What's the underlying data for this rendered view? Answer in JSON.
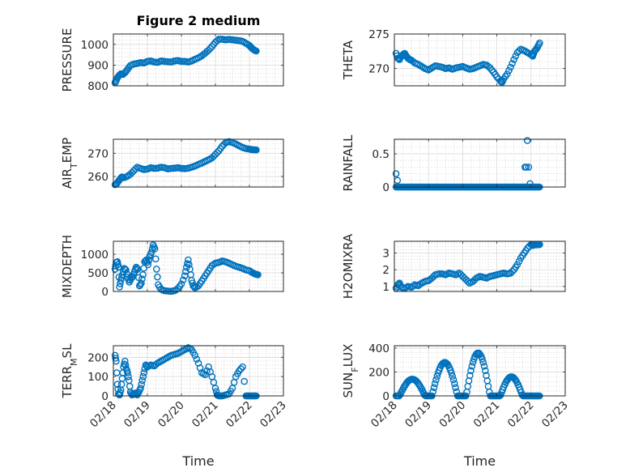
{
  "chart_data": [
    {
      "panel": "pressure",
      "type": "scatter",
      "title": "Figure 2 medium",
      "ylabel": "PRESSURE",
      "xlabel": "",
      "xlim": [
        "02/18",
        "02/23"
      ],
      "ylim": [
        800,
        1050
      ],
      "yticks": [
        800,
        900,
        1000
      ],
      "yticklabels": [
        "800",
        "900",
        "1000"
      ],
      "xticklabels": [],
      "grid": true,
      "minor_grid": true,
      "series": [
        {
          "x": [
            0.05,
            0.08,
            0.12,
            0.17,
            0.22,
            0.28,
            0.35,
            0.42,
            0.5,
            0.6,
            0.7,
            0.8,
            0.9,
            1.0,
            1.1,
            1.2,
            1.3,
            1.4,
            1.5,
            1.6,
            1.7,
            1.8,
            1.9,
            2.0,
            2.1,
            2.2,
            2.3,
            2.4,
            2.5,
            2.6,
            2.7,
            2.8,
            2.9,
            3.0,
            3.1,
            3.2,
            3.3,
            3.4,
            3.5,
            3.6,
            3.7,
            3.8,
            3.9,
            4.0,
            4.05,
            4.1,
            4.15,
            4.2
          ],
          "values": [
            815,
            825,
            840,
            850,
            858,
            855,
            865,
            880,
            898,
            905,
            908,
            912,
            910,
            918,
            920,
            915,
            913,
            920,
            918,
            916,
            915,
            920,
            922,
            918,
            918,
            915,
            920,
            928,
            935,
            945,
            958,
            972,
            990,
            1010,
            1025,
            1025,
            1022,
            1024,
            1022,
            1020,
            1018,
            1015,
            1005,
            995,
            985,
            978,
            972,
            968
          ]
        }
      ]
    },
    {
      "panel": "theta",
      "type": "scatter",
      "title": "",
      "ylabel": "THETA",
      "xlabel": "",
      "xlim": [
        "02/18",
        "02/23"
      ],
      "ylim": [
        267.5,
        275
      ],
      "yticks": [
        270,
        275
      ],
      "yticklabels": [
        "270",
        "275"
      ],
      "xticklabels": [],
      "grid": true,
      "minor_grid": true,
      "series": [
        {
          "x": [
            0.05,
            0.1,
            0.15,
            0.2,
            0.25,
            0.3,
            0.35,
            0.4,
            0.45,
            0.5,
            0.6,
            0.7,
            0.8,
            0.9,
            1.0,
            1.1,
            1.2,
            1.3,
            1.4,
            1.5,
            1.6,
            1.7,
            1.8,
            1.9,
            2.0,
            2.1,
            2.2,
            2.3,
            2.4,
            2.5,
            2.6,
            2.7,
            2.8,
            2.9,
            3.0,
            3.1,
            3.15,
            3.2,
            3.3,
            3.4,
            3.5,
            3.6,
            3.7,
            3.8,
            3.9,
            4.0,
            4.05,
            4.1,
            4.15,
            4.2,
            4.25
          ],
          "values": [
            272.2,
            271.5,
            271.3,
            271.8,
            272.0,
            272.2,
            271.8,
            271.5,
            271.3,
            271.2,
            270.8,
            270.6,
            270.3,
            270.0,
            269.8,
            270.1,
            270.4,
            270.3,
            270.2,
            270.0,
            270.1,
            269.9,
            270.1,
            270.2,
            270.3,
            270.1,
            269.9,
            270.0,
            270.2,
            270.4,
            270.6,
            270.5,
            270.1,
            269.5,
            268.8,
            268.2,
            268.0,
            268.5,
            269.2,
            270.2,
            271.3,
            272.3,
            272.8,
            272.6,
            272.3,
            272.0,
            271.8,
            272.5,
            272.8,
            273.2,
            273.7
          ]
        }
      ]
    },
    {
      "panel": "air_temp",
      "type": "scatter",
      "title": "",
      "ylabel_main": "AIR",
      "ylabel_sub": "T",
      "ylabel_rest": "EMP",
      "xlabel": "",
      "xlim": [
        "02/18",
        "02/23"
      ],
      "ylim": [
        255.5,
        276
      ],
      "yticks": [
        260,
        270
      ],
      "yticklabels": [
        "260",
        "270"
      ],
      "xticklabels": [],
      "grid": true,
      "minor_grid": true,
      "series": [
        {
          "x": [
            0.05,
            0.1,
            0.15,
            0.2,
            0.25,
            0.3,
            0.4,
            0.5,
            0.6,
            0.7,
            0.8,
            0.9,
            1.0,
            1.1,
            1.2,
            1.3,
            1.4,
            1.5,
            1.6,
            1.7,
            1.8,
            1.9,
            2.0,
            2.1,
            2.2,
            2.3,
            2.4,
            2.5,
            2.6,
            2.7,
            2.8,
            2.9,
            3.0,
            3.1,
            3.2,
            3.3,
            3.4,
            3.5,
            3.6,
            3.7,
            3.8,
            3.9,
            4.0,
            4.05,
            4.1,
            4.15,
            4.2
          ],
          "values": [
            256.5,
            257.0,
            258.0,
            259.0,
            259.8,
            259.5,
            260.0,
            261.0,
            262.5,
            264.0,
            263.5,
            263.0,
            263.2,
            263.8,
            263.5,
            263.6,
            264.0,
            263.8,
            263.3,
            263.5,
            263.6,
            263.8,
            263.5,
            263.4,
            263.6,
            264.0,
            264.5,
            265.2,
            265.8,
            266.5,
            267.2,
            268.0,
            269.5,
            271.0,
            273.0,
            274.5,
            275.0,
            274.6,
            274.0,
            273.2,
            272.5,
            272.0,
            271.8,
            271.6,
            271.5,
            271.5,
            271.4
          ]
        }
      ]
    },
    {
      "panel": "rainfall",
      "type": "scatter",
      "title": "",
      "ylabel": "RAINFALL",
      "xlabel": "",
      "xlim": [
        "02/18",
        "02/23"
      ],
      "ylim": [
        0,
        0.72
      ],
      "yticks": [
        0,
        0.5
      ],
      "yticklabels": [
        "0",
        "0.5"
      ],
      "xticklabels": [],
      "grid": true,
      "minor_grid": true,
      "series": [
        {
          "x_range_zero": [
            0.05,
            4.25
          ],
          "x_step": 0.025,
          "spikes_x": [
            0.05,
            0.09,
            3.82,
            3.86,
            3.89,
            3.93,
            3.97
          ],
          "spikes_y": [
            0.2,
            0.1,
            0.3,
            0.3,
            0.7,
            0.3,
            0.05
          ]
        }
      ]
    },
    {
      "panel": "mixdepth",
      "type": "scatter",
      "title": "",
      "ylabel": "MIXDEPTH",
      "xlabel": "",
      "xlim": [
        "02/18",
        "02/23"
      ],
      "ylim": [
        0,
        1350
      ],
      "yticks": [
        0,
        500,
        1000
      ],
      "yticklabels": [
        "0",
        "500",
        "1000"
      ],
      "xticklabels": [],
      "grid": true,
      "minor_grid": true,
      "series": [
        {
          "x": [
            0.05,
            0.08,
            0.12,
            0.15,
            0.18,
            0.22,
            0.27,
            0.32,
            0.37,
            0.42,
            0.47,
            0.52,
            0.57,
            0.62,
            0.67,
            0.72,
            0.77,
            0.82,
            0.87,
            0.92,
            0.97,
            1.02,
            1.07,
            1.12,
            1.17,
            1.22,
            1.27,
            1.32,
            1.4,
            1.5,
            1.6,
            1.7,
            1.8,
            1.9,
            2.0,
            2.1,
            2.15,
            2.2,
            2.25,
            2.3,
            2.35,
            2.4,
            2.5,
            2.6,
            2.7,
            2.8,
            2.9,
            3.0,
            3.1,
            3.2,
            3.3,
            3.4,
            3.5,
            3.6,
            3.7,
            3.8,
            3.9,
            4.0,
            4.1,
            4.15,
            4.2,
            4.25
          ],
          "values": [
            600,
            780,
            800,
            650,
            120,
            300,
            450,
            620,
            580,
            380,
            250,
            350,
            400,
            520,
            650,
            600,
            150,
            220,
            450,
            800,
            850,
            720,
            950,
            1050,
            1250,
            1150,
            600,
            180,
            60,
            20,
            10,
            5,
            20,
            80,
            200,
            420,
            650,
            850,
            600,
            300,
            150,
            100,
            150,
            280,
            420,
            560,
            700,
            760,
            780,
            820,
            800,
            760,
            720,
            680,
            650,
            620,
            580,
            560,
            500,
            480,
            460,
            450
          ]
        }
      ]
    },
    {
      "panel": "h2omixra",
      "type": "scatter",
      "title": "",
      "ylabel": "H2OMIXRA",
      "xlabel": "",
      "xlim": [
        "02/18",
        "02/23"
      ],
      "ylim": [
        0.7,
        3.7
      ],
      "yticks": [
        1,
        2,
        3
      ],
      "yticklabels": [
        "1",
        "2",
        "3"
      ],
      "xticklabels": [],
      "grid": true,
      "minor_grid": true,
      "series": [
        {
          "x": [
            0.05,
            0.1,
            0.15,
            0.2,
            0.3,
            0.4,
            0.5,
            0.6,
            0.7,
            0.8,
            0.9,
            1.0,
            1.1,
            1.2,
            1.3,
            1.4,
            1.5,
            1.6,
            1.7,
            1.8,
            1.9,
            2.0,
            2.1,
            2.2,
            2.3,
            2.4,
            2.5,
            2.6,
            2.7,
            2.8,
            2.9,
            3.0,
            3.1,
            3.2,
            3.3,
            3.4,
            3.5,
            3.6,
            3.7,
            3.8,
            3.9,
            4.0,
            4.05,
            4.1,
            4.15,
            4.2,
            4.25
          ],
          "values": [
            0.9,
            1.1,
            1.2,
            0.95,
            0.9,
            1.0,
            0.95,
            1.1,
            1.05,
            1.2,
            1.3,
            1.35,
            1.5,
            1.7,
            1.75,
            1.75,
            1.7,
            1.8,
            1.75,
            1.7,
            1.8,
            1.6,
            1.4,
            1.2,
            1.3,
            1.5,
            1.6,
            1.55,
            1.5,
            1.6,
            1.65,
            1.7,
            1.75,
            1.8,
            1.75,
            1.8,
            2.0,
            2.3,
            2.7,
            3.0,
            3.3,
            3.5,
            3.45,
            3.5,
            3.48,
            3.5,
            3.5
          ]
        }
      ]
    },
    {
      "panel": "terr_msl",
      "type": "scatter",
      "title": "",
      "ylabel_main": "TERR",
      "ylabel_sub": "M",
      "ylabel_rest": "SL",
      "xlabel": "Time",
      "xlim": [
        "02/18",
        "02/23"
      ],
      "ylim": [
        0,
        260
      ],
      "yticks": [
        0,
        100,
        200
      ],
      "yticklabels": [
        "0",
        "100",
        "200"
      ],
      "xticklabels": [
        "02/18",
        "02/19",
        "02/20",
        "02/21",
        "02/22",
        "02/23"
      ],
      "grid": true,
      "minor_grid": true,
      "series": [
        {
          "x": [
            0.05,
            0.08,
            0.12,
            0.15,
            0.18,
            0.22,
            0.26,
            0.3,
            0.34,
            0.38,
            0.42,
            0.46,
            0.5,
            0.55,
            0.6,
            0.65,
            0.7,
            0.75,
            0.8,
            0.85,
            0.9,
            0.95,
            1.0,
            1.1,
            1.2,
            1.3,
            1.4,
            1.5,
            1.6,
            1.7,
            1.8,
            1.9,
            2.0,
            2.1,
            2.2,
            2.3,
            2.4,
            2.5,
            2.6,
            2.7,
            2.8,
            2.9,
            3.0,
            3.05,
            3.1,
            3.15,
            3.2,
            3.3,
            3.4,
            3.5,
            3.6,
            3.7,
            3.8,
            3.9,
            3.95,
            4.0,
            4.05,
            4.1,
            4.15,
            4.2
          ],
          "values": [
            210,
            180,
            60,
            10,
            5,
            30,
            90,
            150,
            180,
            140,
            120,
            80,
            20,
            5,
            10,
            15,
            5,
            20,
            40,
            80,
            120,
            160,
            150,
            160,
            155,
            170,
            180,
            190,
            200,
            210,
            215,
            220,
            230,
            240,
            250,
            240,
            210,
            170,
            120,
            110,
            150,
            100,
            40,
            5,
            0,
            0,
            0,
            5,
            10,
            40,
            100,
            130,
            150,
            0,
            0,
            0,
            0,
            0,
            0,
            0
          ]
        }
      ]
    },
    {
      "panel": "sun_flux",
      "type": "scatter",
      "title": "",
      "ylabel_main": "SUN",
      "ylabel_sub": "F",
      "ylabel_rest": "LUX",
      "xlabel": "Time",
      "xlim": [
        "02/18",
        "02/23"
      ],
      "ylim": [
        0,
        420
      ],
      "yticks": [
        0,
        200,
        400
      ],
      "yticklabels": [
        "0",
        "200",
        "400"
      ],
      "xticklabels": [
        "02/18",
        "02/19",
        "02/20",
        "02/21",
        "02/22",
        "02/23"
      ],
      "grid": true,
      "minor_grid": true,
      "series": [
        {
          "peaks": [
            [
              0.5,
              140
            ],
            [
              1.45,
              280
            ],
            [
              2.4,
              360
            ],
            [
              3.4,
              160
            ]
          ],
          "day_start": [
            0.05,
            1.0,
            2.0,
            3.0
          ],
          "day_end": [
            0.95,
            1.9,
            2.85,
            3.8
          ],
          "x_end": 4.25
        }
      ]
    }
  ]
}
